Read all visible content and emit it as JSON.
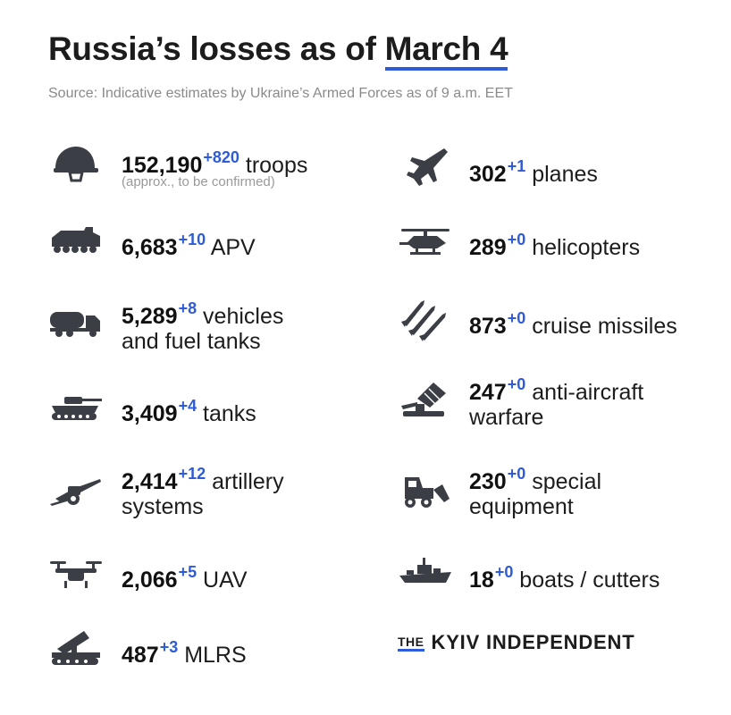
{
  "header": {
    "title_prefix": "Russia’s losses as of",
    "title_date": "March 4",
    "source": "Source: Indicative estimates by Ukraine’s Armed Forces as of 9 a.m. EET"
  },
  "left": [
    {
      "icon": "helmet-icon",
      "value": "152,190",
      "delta": "+820",
      "label": "troops",
      "label2": "",
      "note": "(approx., to be confirmed)"
    },
    {
      "icon": "apv-icon",
      "value": "6,683",
      "delta": "+10",
      "label": "APV",
      "label2": ""
    },
    {
      "icon": "fuel-truck-icon",
      "value": "5,289",
      "delta": "+8",
      "label": "vehicles",
      "label2": "and fuel tanks"
    },
    {
      "icon": "tank-icon",
      "value": "3,409",
      "delta": "+4",
      "label": "tanks",
      "label2": ""
    },
    {
      "icon": "artillery-icon",
      "value": "2,414",
      "delta": "+12",
      "label": "artillery",
      "label2": "systems"
    },
    {
      "icon": "drone-icon",
      "value": "2,066",
      "delta": "+5",
      "label": "UAV",
      "label2": ""
    },
    {
      "icon": "mlrs-icon",
      "value": "487",
      "delta": "+3",
      "label": "MLRS",
      "label2": ""
    }
  ],
  "right": [
    {
      "icon": "plane-icon",
      "value": "302",
      "delta": "+1",
      "label": "planes",
      "label2": ""
    },
    {
      "icon": "helicopter-icon",
      "value": "289",
      "delta": "+0",
      "label": "helicopters",
      "label2": ""
    },
    {
      "icon": "missiles-icon",
      "value": "873",
      "delta": "+0",
      "label": "cruise missiles",
      "label2": ""
    },
    {
      "icon": "anti-aircraft-icon",
      "value": "247",
      "delta": "+0",
      "label": "anti-aircraft",
      "label2": "warfare"
    },
    {
      "icon": "loader-icon",
      "value": "230",
      "delta": "+0",
      "label": "special",
      "label2": "equipment"
    },
    {
      "icon": "ship-icon",
      "value": "18",
      "delta": "+0",
      "label": "boats / cutters",
      "label2": ""
    }
  ],
  "brand": {
    "the": "THE",
    "name": "KYIV INDEPENDENT"
  },
  "colors": {
    "accent": "#2f5bd6",
    "text": "#1c1c1c",
    "icon": "#3b3e45",
    "muted": "#8a8a8a"
  }
}
